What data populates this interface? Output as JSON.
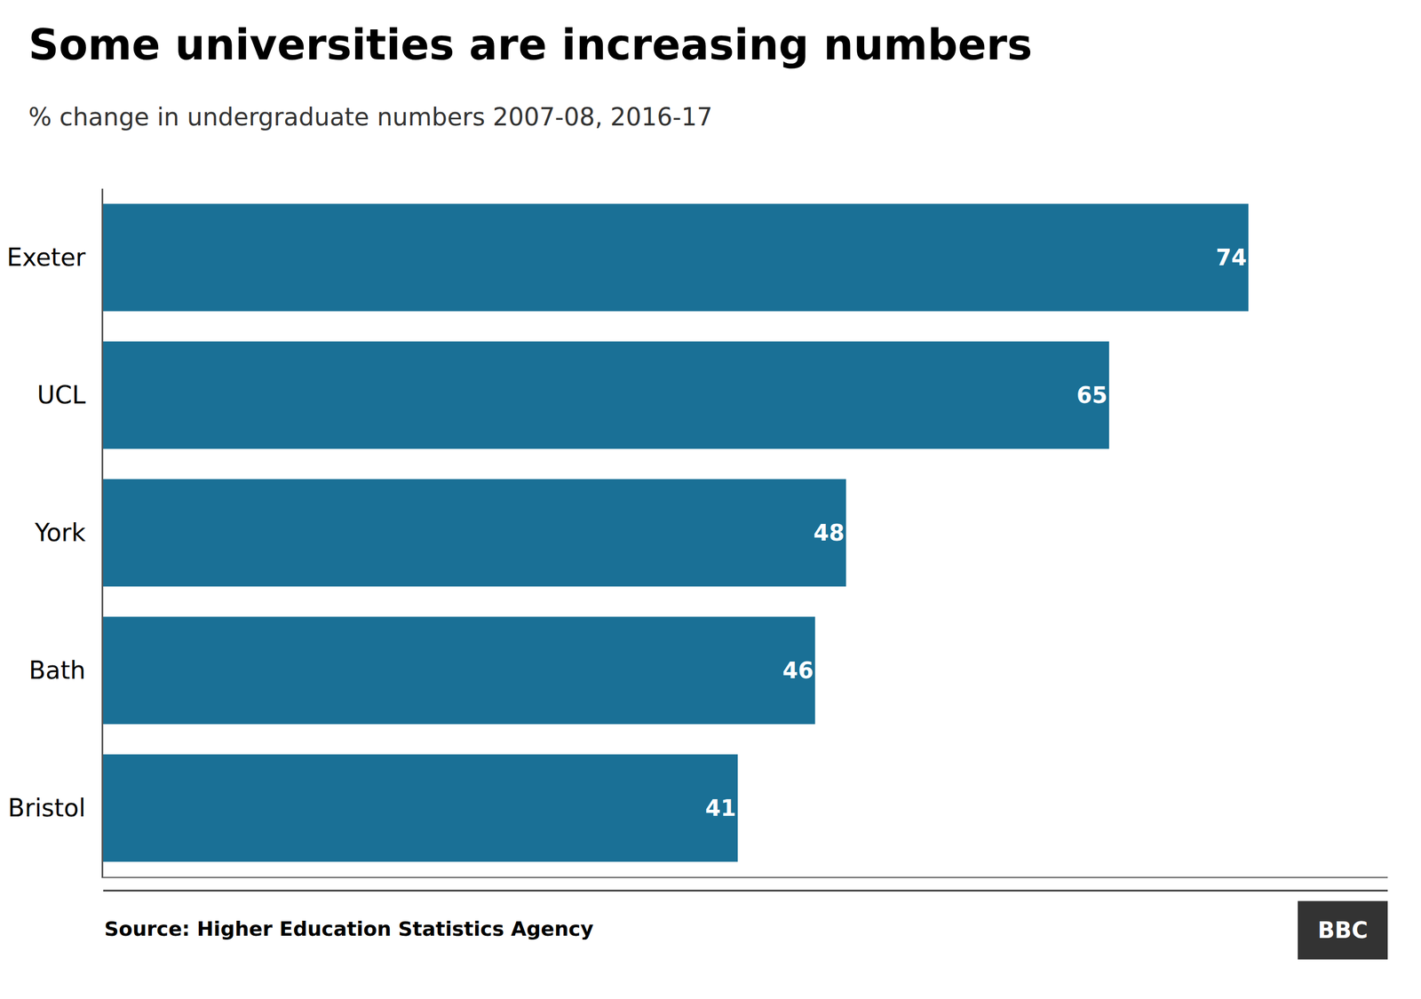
{
  "chart_data": {
    "type": "bar",
    "orientation": "horizontal",
    "title": "Some universities are increasing numbers",
    "subtitle": "% change in undergraduate numbers 2007-08, 2016-17",
    "categories": [
      "Exeter",
      "UCL",
      "York",
      "Bath",
      "Bristol"
    ],
    "values": [
      74,
      65,
      48,
      46,
      41
    ],
    "color": "#1a7096",
    "xlim": [
      0,
      83
    ],
    "data_labels": true,
    "tick_labels": "y",
    "grid": false,
    "annotations": [
      "Source: Higher Education Statistics Agency",
      "BBC"
    ]
  }
}
